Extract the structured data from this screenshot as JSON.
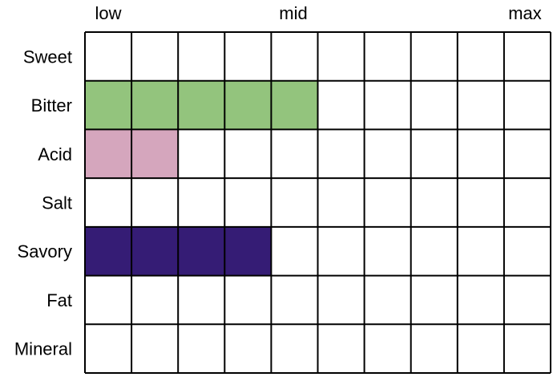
{
  "chart_data": {
    "type": "heatmap",
    "x_labels": [
      "low",
      "mid",
      "max"
    ],
    "columns": 10,
    "rows": [
      {
        "label": "Sweet",
        "value": 0,
        "color": ""
      },
      {
        "label": "Bitter",
        "value": 5,
        "color": "#93c47d"
      },
      {
        "label": "Acid",
        "value": 2,
        "color": "#d5a6bd"
      },
      {
        "label": "Salt",
        "value": 0,
        "color": ""
      },
      {
        "label": "Savory",
        "value": 4,
        "color": "#351c75"
      },
      {
        "label": "Fat",
        "value": 0,
        "color": ""
      },
      {
        "label": "Mineral",
        "value": 0,
        "color": ""
      }
    ],
    "grid": true
  }
}
